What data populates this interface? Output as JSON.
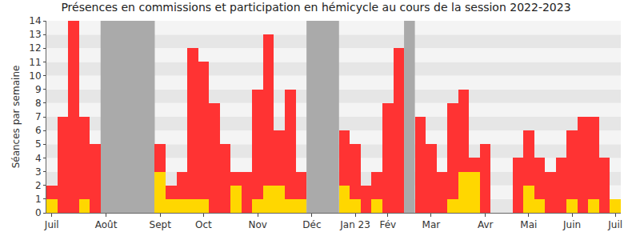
{
  "chart_data": {
    "type": "bar",
    "title": "Présences en commissions et participation en hémicycle au cours de la session 2022-2023",
    "y_label": "Séances par semaine",
    "categories": [
      "Juil",
      null,
      null,
      null,
      null,
      "Août",
      null,
      null,
      null,
      null,
      "Sept",
      null,
      null,
      null,
      "Oct",
      null,
      null,
      null,
      null,
      "Nov",
      null,
      null,
      null,
      null,
      "Déc",
      null,
      null,
      null,
      "Jan 23",
      null,
      null,
      "Fév",
      null,
      null,
      null,
      "Mar",
      null,
      null,
      null,
      null,
      "Avr",
      null,
      null,
      null,
      "Mai",
      null,
      null,
      null,
      "Juin",
      null,
      null,
      null,
      "Juil"
    ],
    "series": [
      {
        "color": "#ff3333",
        "values": [
          2,
          7,
          14,
          7,
          5,
          0,
          0,
          0,
          0,
          0,
          5,
          2,
          3,
          12,
          11,
          8,
          5,
          3,
          3,
          9,
          13,
          6,
          9,
          3,
          0,
          0,
          0,
          6,
          5,
          2,
          3,
          8,
          12,
          0,
          7,
          5,
          3,
          8,
          9,
          4,
          5,
          0,
          0,
          4,
          6,
          4,
          3,
          4,
          6,
          7,
          7,
          4,
          1
        ]
      },
      {
        "color": "#ffd700",
        "values": [
          1,
          0,
          0,
          1,
          0,
          0,
          0,
          0,
          0,
          0,
          3,
          1,
          1,
          1,
          1,
          0,
          0,
          2,
          0,
          1,
          2,
          2,
          1,
          1,
          0,
          0,
          0,
          2,
          1,
          0,
          1,
          0,
          0,
          0,
          0,
          0,
          0,
          1,
          3,
          3,
          0,
          0,
          0,
          0,
          2,
          1,
          0,
          0,
          1,
          0,
          1,
          0,
          1
        ]
      }
    ],
    "shaded_periods": [
      [
        5,
        9
      ],
      [
        24,
        26
      ],
      [
        33,
        33
      ]
    ],
    "ylim": [
      0,
      14
    ],
    "yticks": [
      0,
      1,
      2,
      3,
      4,
      5,
      6,
      7,
      8,
      9,
      10,
      11,
      12,
      13,
      14
    ],
    "grid": true
  }
}
